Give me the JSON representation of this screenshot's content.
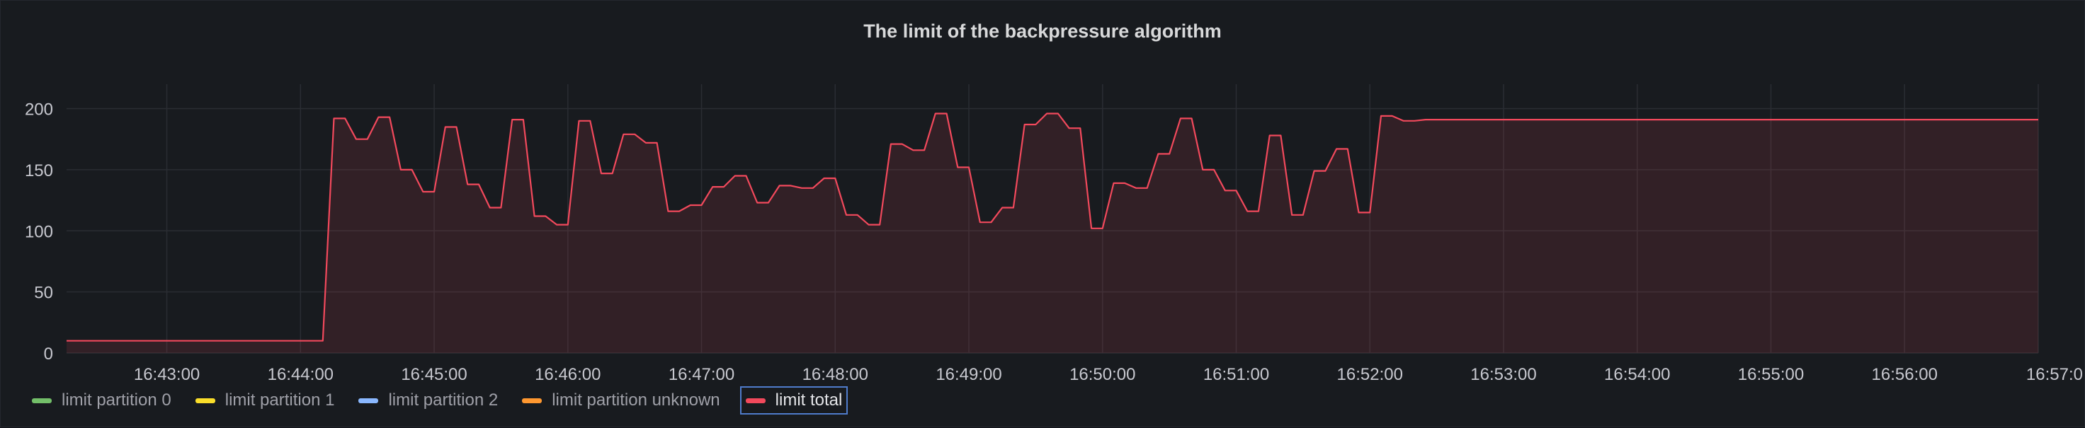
{
  "panel": {
    "title": "The limit of the backpressure algorithm"
  },
  "legend": [
    {
      "label": "limit partition 0",
      "color": "#73bf69",
      "active": false
    },
    {
      "label": "limit partition 1",
      "color": "#fade2a",
      "active": false
    },
    {
      "label": "limit partition 2",
      "color": "#8ab8ff",
      "active": false
    },
    {
      "label": "limit partition unknown",
      "color": "#ff9830",
      "active": false
    },
    {
      "label": "limit total",
      "color": "#f2495c",
      "active": true
    }
  ],
  "chart_data": {
    "type": "area",
    "title": "The limit of the backpressure algorithm",
    "xlabel": "",
    "ylabel": "",
    "ylim": [
      0,
      220
    ],
    "y_ticks": [
      0,
      50,
      100,
      150,
      200
    ],
    "x_range": [
      "16:42:15",
      "16:57:00"
    ],
    "x_ticks": [
      "16:43:00",
      "16:44:00",
      "16:45:00",
      "16:46:00",
      "16:47:00",
      "16:48:00",
      "16:49:00",
      "16:50:00",
      "16:51:00",
      "16:52:00",
      "16:53:00",
      "16:54:00",
      "16:55:00",
      "16:56:00",
      "16:57:0"
    ],
    "grid": true,
    "legend_position": "bottom-left",
    "series": [
      {
        "name": "limit total",
        "color": "#f2495c",
        "points": [
          [
            "16:42:15",
            10
          ],
          [
            "16:44:10",
            10
          ],
          [
            "16:44:15",
            192
          ],
          [
            "16:44:20",
            192
          ],
          [
            "16:44:25",
            175
          ],
          [
            "16:44:30",
            175
          ],
          [
            "16:44:35",
            193
          ],
          [
            "16:44:40",
            193
          ],
          [
            "16:44:45",
            150
          ],
          [
            "16:44:50",
            150
          ],
          [
            "16:44:55",
            132
          ],
          [
            "16:45:00",
            132
          ],
          [
            "16:45:05",
            185
          ],
          [
            "16:45:10",
            185
          ],
          [
            "16:45:15",
            138
          ],
          [
            "16:45:20",
            138
          ],
          [
            "16:45:25",
            119
          ],
          [
            "16:45:30",
            119
          ],
          [
            "16:45:35",
            191
          ],
          [
            "16:45:40",
            191
          ],
          [
            "16:45:45",
            112
          ],
          [
            "16:45:50",
            112
          ],
          [
            "16:45:55",
            105
          ],
          [
            "16:46:00",
            105
          ],
          [
            "16:46:05",
            190
          ],
          [
            "16:46:10",
            190
          ],
          [
            "16:46:15",
            147
          ],
          [
            "16:46:20",
            147
          ],
          [
            "16:46:25",
            179
          ],
          [
            "16:46:30",
            179
          ],
          [
            "16:46:35",
            172
          ],
          [
            "16:46:40",
            172
          ],
          [
            "16:46:45",
            116
          ],
          [
            "16:46:50",
            116
          ],
          [
            "16:46:55",
            121
          ],
          [
            "16:47:00",
            121
          ],
          [
            "16:47:05",
            136
          ],
          [
            "16:47:10",
            136
          ],
          [
            "16:47:15",
            145
          ],
          [
            "16:47:20",
            145
          ],
          [
            "16:47:25",
            123
          ],
          [
            "16:47:30",
            123
          ],
          [
            "16:47:35",
            137
          ],
          [
            "16:47:40",
            137
          ],
          [
            "16:47:45",
            135
          ],
          [
            "16:47:50",
            135
          ],
          [
            "16:47:55",
            143
          ],
          [
            "16:48:00",
            143
          ],
          [
            "16:48:05",
            113
          ],
          [
            "16:48:10",
            113
          ],
          [
            "16:48:15",
            105
          ],
          [
            "16:48:20",
            105
          ],
          [
            "16:48:25",
            171
          ],
          [
            "16:48:30",
            171
          ],
          [
            "16:48:35",
            166
          ],
          [
            "16:48:40",
            166
          ],
          [
            "16:48:45",
            196
          ],
          [
            "16:48:50",
            196
          ],
          [
            "16:48:55",
            152
          ],
          [
            "16:49:00",
            152
          ],
          [
            "16:49:05",
            107
          ],
          [
            "16:49:10",
            107
          ],
          [
            "16:49:15",
            119
          ],
          [
            "16:49:20",
            119
          ],
          [
            "16:49:25",
            187
          ],
          [
            "16:49:30",
            187
          ],
          [
            "16:49:35",
            196
          ],
          [
            "16:49:40",
            196
          ],
          [
            "16:49:45",
            184
          ],
          [
            "16:49:50",
            184
          ],
          [
            "16:49:55",
            102
          ],
          [
            "16:50:00",
            102
          ],
          [
            "16:50:05",
            139
          ],
          [
            "16:50:10",
            139
          ],
          [
            "16:50:15",
            135
          ],
          [
            "16:50:20",
            135
          ],
          [
            "16:50:25",
            163
          ],
          [
            "16:50:30",
            163
          ],
          [
            "16:50:35",
            192
          ],
          [
            "16:50:40",
            192
          ],
          [
            "16:50:45",
            150
          ],
          [
            "16:50:50",
            150
          ],
          [
            "16:50:55",
            133
          ],
          [
            "16:51:00",
            133
          ],
          [
            "16:51:05",
            116
          ],
          [
            "16:51:10",
            116
          ],
          [
            "16:51:15",
            178
          ],
          [
            "16:51:20",
            178
          ],
          [
            "16:51:25",
            113
          ],
          [
            "16:51:30",
            113
          ],
          [
            "16:51:35",
            149
          ],
          [
            "16:51:40",
            149
          ],
          [
            "16:51:45",
            167
          ],
          [
            "16:51:50",
            167
          ],
          [
            "16:51:55",
            115
          ],
          [
            "16:52:00",
            115
          ],
          [
            "16:52:05",
            194
          ],
          [
            "16:52:10",
            194
          ],
          [
            "16:52:15",
            190
          ],
          [
            "16:52:20",
            190
          ],
          [
            "16:52:25",
            191
          ],
          [
            "16:57:00",
            191
          ]
        ]
      }
    ]
  }
}
